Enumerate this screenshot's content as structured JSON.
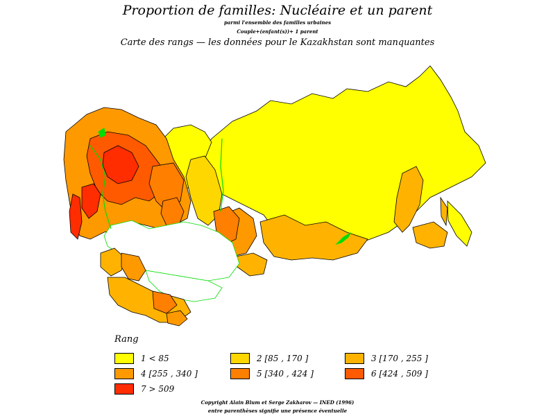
{
  "header": {
    "title": "Proportion de familles: Nucléaire et un parent",
    "subtitle1": "parmi l'ensemble des familles urbaines",
    "subtitle2": "Couple+(enfant(s))+ 1 parent",
    "map_title": "Carte des  rangs  — les données pour le Kazakhstan sont manquantes"
  },
  "colors": {
    "rank1": "#ffff00",
    "rank2": "#ffd700",
    "rank3": "#ffb300",
    "rank4": "#ff9900",
    "rank5": "#ff7f00",
    "rank6": "#ff5a00",
    "rank7": "#ff2d00",
    "missing": "#ffffff",
    "border": "#000000",
    "water": "#00dd00"
  },
  "legend": {
    "title": "Rang",
    "items": [
      {
        "label": "1  <  85",
        "color": "#ffff00"
      },
      {
        "label": "2 [85  ,  170  ]",
        "color": "#ffd700"
      },
      {
        "label": "3 [170  ,  255  ]",
        "color": "#ffb300"
      },
      {
        "label": "4 [255  ,  340  ]",
        "color": "#ff9900"
      },
      {
        "label": "5 [340  ,  424  ]",
        "color": "#ff7f00"
      },
      {
        "label": "6 [424  ,  509  ]",
        "color": "#ff5a00"
      },
      {
        "label": "7  >  509",
        "color": "#ff2d00"
      }
    ]
  },
  "footer": {
    "copyright": "Copyright  Alain  Blum  et  Serge  Zakharov  —  INED  (1996)",
    "note": "entre parenthèses signifie une présence éventuelle"
  }
}
